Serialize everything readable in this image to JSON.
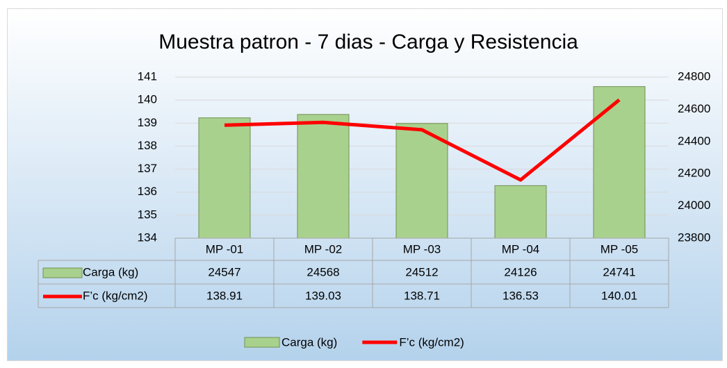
{
  "chart_data": {
    "type": "bar",
    "title": "Muestra patron - 7 dias - Carga y Resistencia",
    "categories": [
      "MP -01",
      "MP -02",
      "MP -03",
      "MP -04",
      "MP -05"
    ],
    "series": [
      {
        "name": "Carga  (kg)",
        "type": "bar",
        "axis": "y2",
        "color": "#a9d18e",
        "values": [
          24547,
          24568,
          24512,
          24126,
          24741
        ]
      },
      {
        "name": "F’c  (kg/cm2)",
        "type": "line",
        "axis": "y",
        "color": "#ff0000",
        "values": [
          138.91,
          139.03,
          138.71,
          136.53,
          140.01
        ]
      }
    ],
    "ylim": [
      134,
      141
    ],
    "yticks": [
      134,
      135,
      136,
      137,
      138,
      139,
      140,
      141
    ],
    "y2lim": [
      23800,
      24800
    ],
    "y2ticks": [
      23800,
      24000,
      24200,
      24400,
      24600,
      24800
    ],
    "grid": true,
    "legend": "bottom",
    "data_table": true
  }
}
